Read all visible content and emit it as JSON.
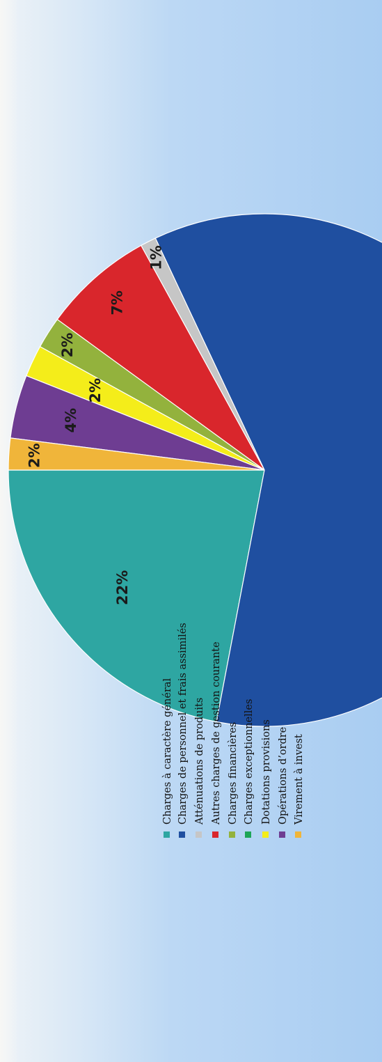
{
  "chart_data": {
    "type": "pie",
    "start_angle_deg": 180,
    "rotation_deg": -90,
    "slices": [
      {
        "label": "Charges à caractère général",
        "value": 22,
        "label_text": "22%",
        "color": "#2ea6a2"
      },
      {
        "label": "Charges de personnel et frais assimilés",
        "value": 60,
        "label_text": "",
        "color": "#1f4fa0"
      },
      {
        "label": "Atténuations de produits",
        "value": 1,
        "label_text": "1%",
        "color": "#c6c6c6"
      },
      {
        "label": "Autres charges de gestion courante",
        "value": 7,
        "label_text": "7%",
        "color": "#d9262c"
      },
      {
        "label": "Charges financières",
        "value": 2,
        "label_text": "2%",
        "color": "#93b23d"
      },
      {
        "label": "Charges exceptionnelles",
        "value": 0,
        "label_text": "",
        "color": "#1ea556"
      },
      {
        "label": "Dotations provisions",
        "value": 2,
        "label_text": "2%",
        "color": "#f4ed1a"
      },
      {
        "label": "Opérations d'ordre",
        "value": 4,
        "label_text": "4%",
        "color": "#6e3d92"
      },
      {
        "label": "Virement à invest",
        "value": 2,
        "label_text": "2%",
        "color": "#f0b53a"
      }
    ],
    "legend": {
      "placement": "right",
      "items": [
        {
          "label": "Charges à caractère général",
          "color": "#2ea6a2"
        },
        {
          "label": "Charges de personnel et frais assimilés",
          "color": "#1f4fa0"
        },
        {
          "label": "Atténuations de produits",
          "color": "#c6c6c6"
        },
        {
          "label": "Autres charges de gestion courante",
          "color": "#d9262c"
        },
        {
          "label": "Charges financières",
          "color": "#93b23d"
        },
        {
          "label": "Charges exceptionnelles",
          "color": "#1ea556"
        },
        {
          "label": "Dotations provisions",
          "color": "#f4ed1a"
        },
        {
          "label": "Opérations d’ordre",
          "color": "#6e3d92"
        },
        {
          "label": "Virement à invest",
          "color": "#f0b53a"
        }
      ]
    }
  }
}
